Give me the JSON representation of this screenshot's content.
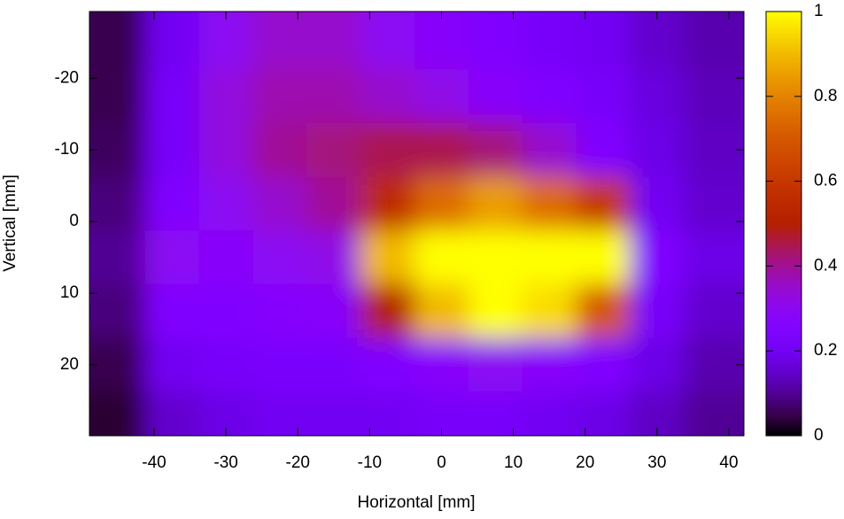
{
  "chart_data": {
    "type": "heatmap",
    "xlabel": "Horizontal [mm]",
    "ylabel": "Vertical [mm]",
    "x": [
      -45,
      -37.5,
      -30,
      -22.5,
      -15,
      -7.5,
      0,
      7.5,
      15,
      22.5,
      30,
      37.5
    ],
    "y": [
      -25,
      -17.5,
      -10,
      -2.5,
      5,
      12.5,
      20,
      27.5
    ],
    "z": [
      [
        0.05,
        0.2,
        0.3,
        0.35,
        0.35,
        0.3,
        0.28,
        0.25,
        0.22,
        0.2,
        0.15,
        0.12
      ],
      [
        0.05,
        0.22,
        0.33,
        0.38,
        0.38,
        0.35,
        0.32,
        0.28,
        0.25,
        0.22,
        0.17,
        0.13
      ],
      [
        0.06,
        0.22,
        0.33,
        0.4,
        0.42,
        0.45,
        0.45,
        0.42,
        0.35,
        0.25,
        0.18,
        0.14
      ],
      [
        0.08,
        0.25,
        0.3,
        0.35,
        0.4,
        0.55,
        0.75,
        0.85,
        0.75,
        0.6,
        0.2,
        0.15
      ],
      [
        0.1,
        0.3,
        0.28,
        0.3,
        0.32,
        0.9,
        1,
        1,
        1,
        1,
        0.25,
        0.18
      ],
      [
        0.08,
        0.25,
        0.25,
        0.27,
        0.28,
        0.5,
        0.9,
        1,
        0.95,
        0.7,
        0.22,
        0.15
      ],
      [
        0.05,
        0.2,
        0.22,
        0.23,
        0.23,
        0.25,
        0.28,
        0.3,
        0.28,
        0.25,
        0.18,
        0.12
      ],
      [
        0.03,
        0.15,
        0.18,
        0.2,
        0.2,
        0.2,
        0.22,
        0.22,
        0.2,
        0.18,
        0.14,
        0.1
      ]
    ],
    "xlim": [
      -49,
      42.1
    ],
    "xticks": [
      -40,
      -30,
      -20,
      -10,
      0,
      10,
      20,
      30,
      40
    ],
    "ylim": [
      -29.3,
      29.9
    ],
    "yticks": [
      -20,
      -10,
      0,
      10,
      20
    ],
    "zlim": [
      0,
      1
    ],
    "zticks": [
      0,
      0.2,
      0.4,
      0.6,
      0.8,
      1
    ]
  }
}
